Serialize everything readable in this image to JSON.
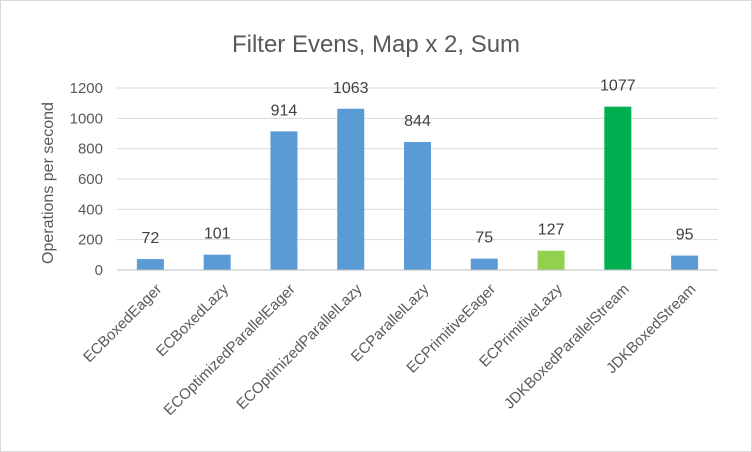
{
  "chart_data": {
    "type": "bar",
    "title": "Filter Evens, Map x 2, Sum",
    "xlabel": "",
    "ylabel": "Operations per second",
    "ylim": [
      0,
      1200
    ],
    "yticks": [
      0,
      200,
      400,
      600,
      800,
      1000,
      1200
    ],
    "grid": true,
    "legend": "none",
    "categories": [
      "ECBoxedEager",
      "ECBoxedLazy",
      "ECOptimizedParallelEager",
      "ECOptimizedParallelLazy",
      "ECParallelLazy",
      "ECPrimitiveEager",
      "ECPrimitiveLazy",
      "JDKBoxedParallelStream",
      "JDKBoxedStream"
    ],
    "values": [
      72,
      101,
      914,
      1063,
      844,
      75,
      127,
      1077,
      95
    ],
    "colors": [
      "#5b9bd5",
      "#5b9bd5",
      "#5b9bd5",
      "#5b9bd5",
      "#5b9bd5",
      "#5b9bd5",
      "#92d050",
      "#00b050",
      "#5b9bd5"
    ]
  }
}
